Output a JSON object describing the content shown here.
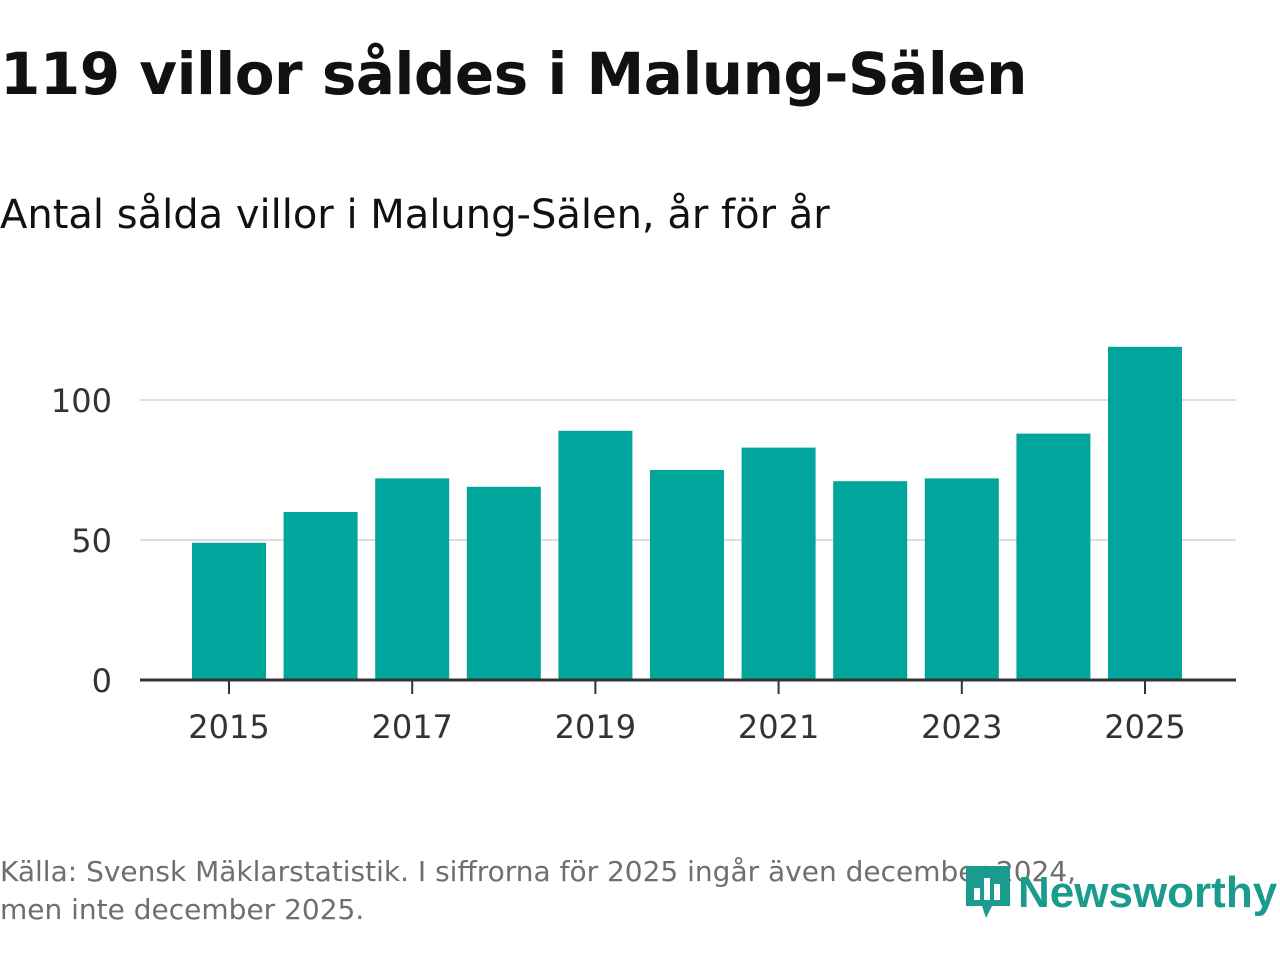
{
  "title": "119 villor såldes i Malung-Sälen",
  "subtitle": "Antal sålda villor i Malung-Sälen, år för år",
  "footnote": {
    "line1": "Källa: Svensk Mäklarstatistik. I siffrorna för 2025 ingår även december 2024,",
    "line2": "men inte december 2025."
  },
  "logo": {
    "text": "Newsworthy"
  },
  "colors": {
    "bar": "#00a59b",
    "grid": "#dddddd",
    "axis": "#333333",
    "tick_text": "#333333",
    "logo": "#1a9b8e"
  },
  "chart_data": {
    "type": "bar",
    "title": "Antal sålda villor i Malung-Sälen, år för år",
    "xlabel": "",
    "ylabel": "",
    "categories": [
      "2015",
      "2016",
      "2017",
      "2018",
      "2019",
      "2020",
      "2021",
      "2022",
      "2023",
      "2024",
      "2025"
    ],
    "values": [
      49,
      60,
      72,
      69,
      89,
      75,
      83,
      71,
      72,
      88,
      119
    ],
    "ylim": [
      0,
      119
    ],
    "yticks": [
      0,
      50,
      100
    ],
    "xtick_labels": [
      "2015",
      "2017",
      "2019",
      "2021",
      "2023",
      "2025"
    ],
    "grid": true,
    "legend": "none"
  }
}
